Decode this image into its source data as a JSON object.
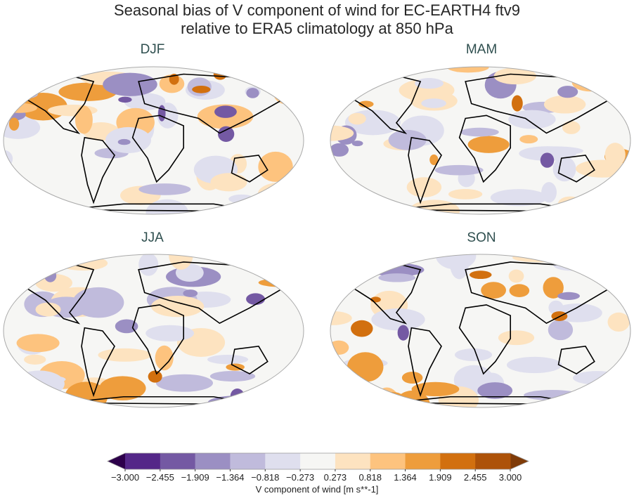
{
  "title_line1": "Seasonal bias of V component of wind for EC-EARTH4 ftv9",
  "title_line2": "relative to ERA5 climatology at 850 hPa",
  "panels": [
    {
      "label": "DJF"
    },
    {
      "label": "MAM"
    },
    {
      "label": "JJA"
    },
    {
      "label": "SON"
    }
  ],
  "colorbar": {
    "label": "V component of wind [m s**-1]",
    "ticks": [
      "−3.000",
      "−2.455",
      "−1.909",
      "−1.364",
      "−0.818",
      "−0.273",
      "0.273",
      "0.818",
      "1.364",
      "1.909",
      "2.455",
      "3.000"
    ],
    "range": [
      -3.0,
      3.0
    ],
    "extend": "both",
    "colors": [
      "#542788",
      "#7459a3",
      "#9b8fc3",
      "#c0bbdc",
      "#dfdfee",
      "#f6f6f4",
      "#fde3c0",
      "#fdc37e",
      "#ee9d3c",
      "#d2700f",
      "#ad5209"
    ],
    "under_color": "#2d004b",
    "over_color": "#7f3b08"
  }
}
